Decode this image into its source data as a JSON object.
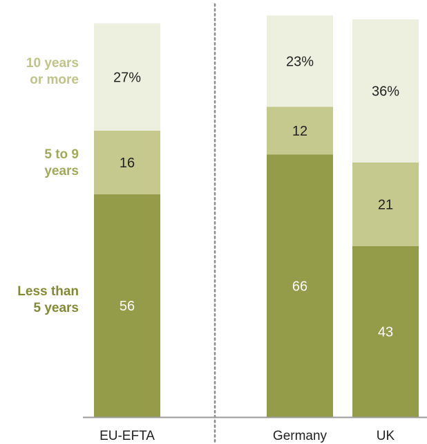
{
  "chart_data": {
    "type": "bar",
    "stacked": true,
    "categories": [
      "EU-EFTA",
      "Germany",
      "UK"
    ],
    "series": [
      {
        "name": "Less than\n5 years",
        "values": [
          56,
          66,
          43
        ],
        "value_labels": [
          "56",
          "66",
          "43"
        ],
        "color": "#949c4a",
        "text_color": "#ffffff"
      },
      {
        "name": "5 to 9\nyears",
        "values": [
          16,
          12,
          21
        ],
        "value_labels": [
          "16",
          "12",
          "21"
        ],
        "color": "#c5c98e",
        "text_color": "#222222"
      },
      {
        "name": "10 years\nor more",
        "values": [
          27,
          23,
          36
        ],
        "value_labels": [
          "27%",
          "23%",
          "36%"
        ],
        "color": "#eef0df",
        "text_color": "#222222"
      }
    ],
    "label_colors": [
      "#838a36",
      "#a3a95a",
      "#c0c48a"
    ],
    "axis_color": "#9a9a9a",
    "separator_after": "EU-EFTA",
    "ylim": [
      0,
      100
    ]
  }
}
